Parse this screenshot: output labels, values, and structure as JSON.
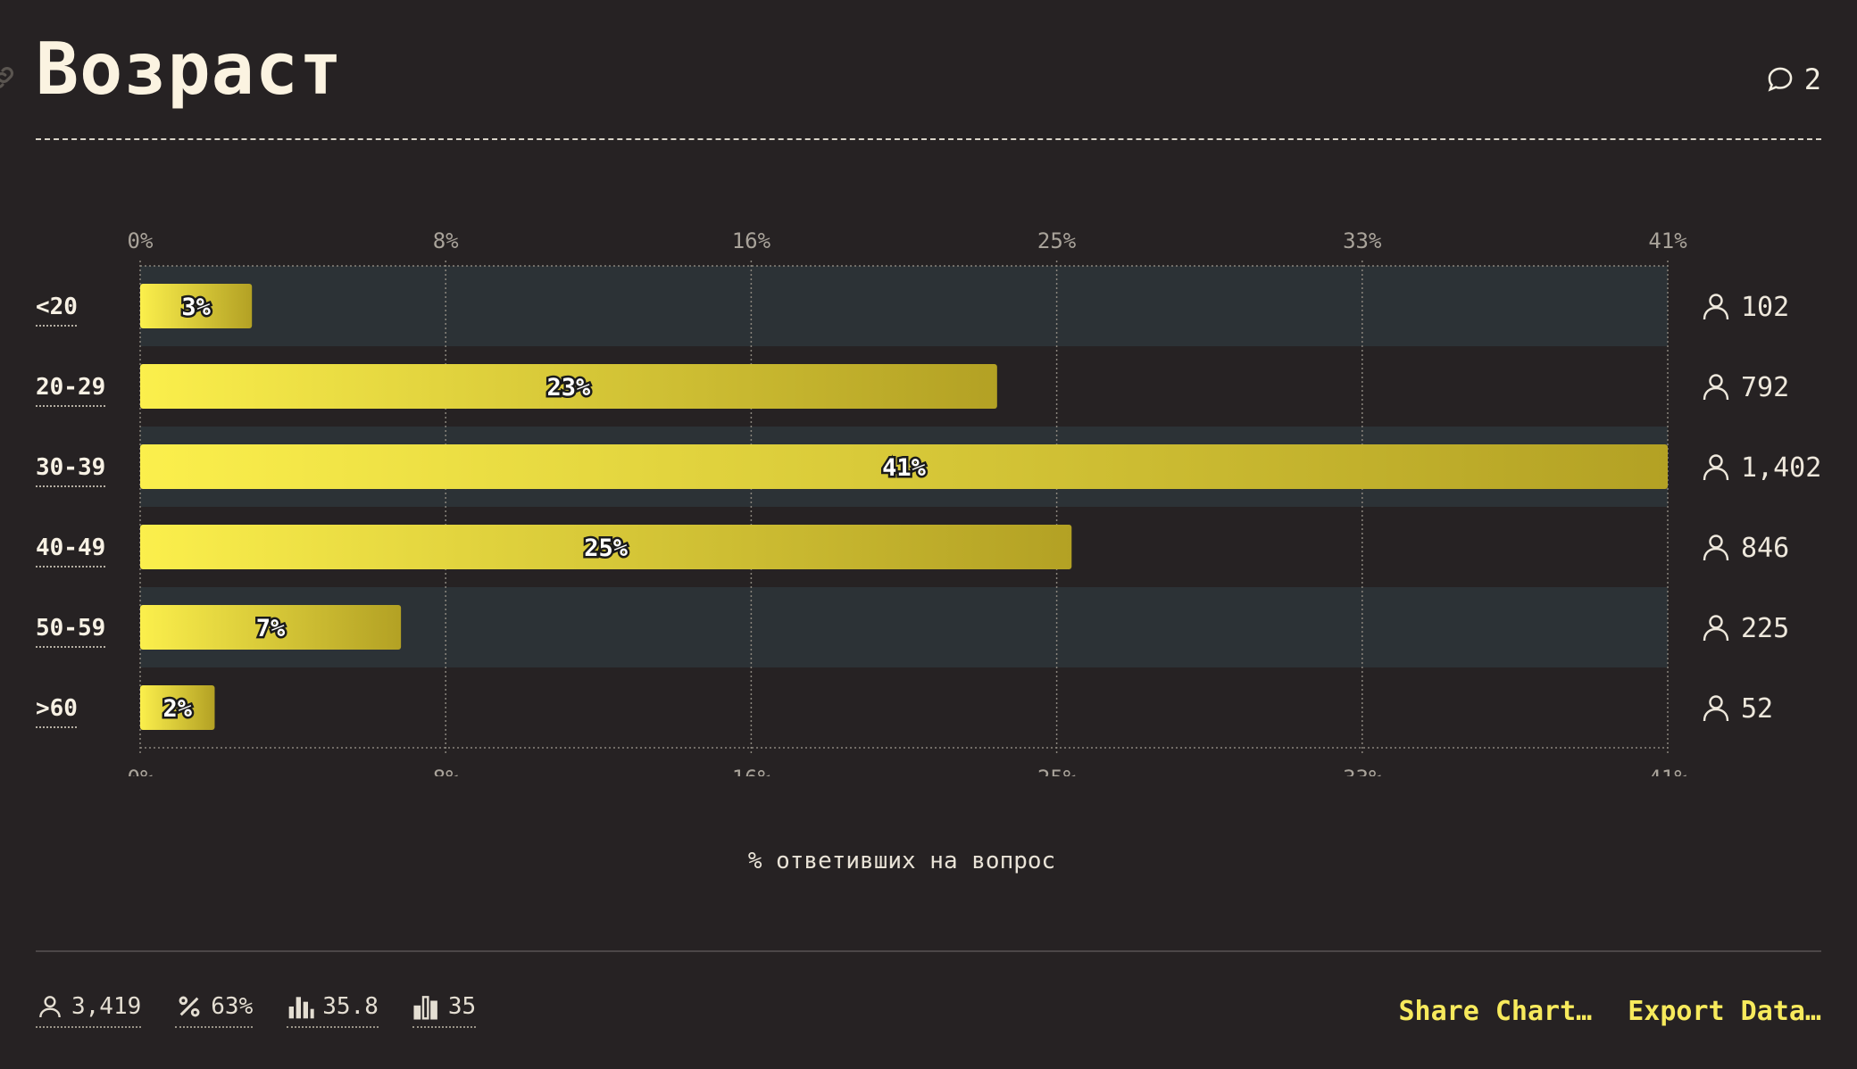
{
  "title": "Возраст",
  "comments": {
    "count": "2"
  },
  "chart_data": {
    "type": "bar",
    "orientation": "horizontal",
    "categories": [
      "<20",
      "20-29",
      "30-39",
      "40-49",
      "50-59",
      ">60"
    ],
    "values": [
      3,
      23,
      41,
      25,
      7,
      2
    ],
    "value_labels": [
      "3%",
      "23%",
      "41%",
      "25%",
      "7%",
      "2%"
    ],
    "counts": [
      "102",
      "792",
      "1,402",
      "846",
      "225",
      "52"
    ],
    "xlim": [
      0,
      41
    ],
    "xticks": [
      0,
      8.2,
      16.4,
      24.6,
      32.8,
      41
    ],
    "xtick_labels": [
      "0%",
      "8%",
      "16%",
      "25%",
      "33%",
      "41%"
    ],
    "xlabel": "% ответивших на вопрос",
    "grid": true,
    "colors": {
      "bar_start": "#fbef4c",
      "bar_end": "#b3a124",
      "band": "#2c3236"
    }
  },
  "stats": [
    {
      "icon": "person-icon",
      "value": "3,419"
    },
    {
      "icon": "percent-icon",
      "value": "63%"
    },
    {
      "icon": "bar-chart-icon",
      "value": "35.8"
    },
    {
      "icon": "bar-chart-outline-icon",
      "value": "35"
    }
  ],
  "actions": {
    "share": "Share Chart…",
    "export": "Export Data…"
  }
}
